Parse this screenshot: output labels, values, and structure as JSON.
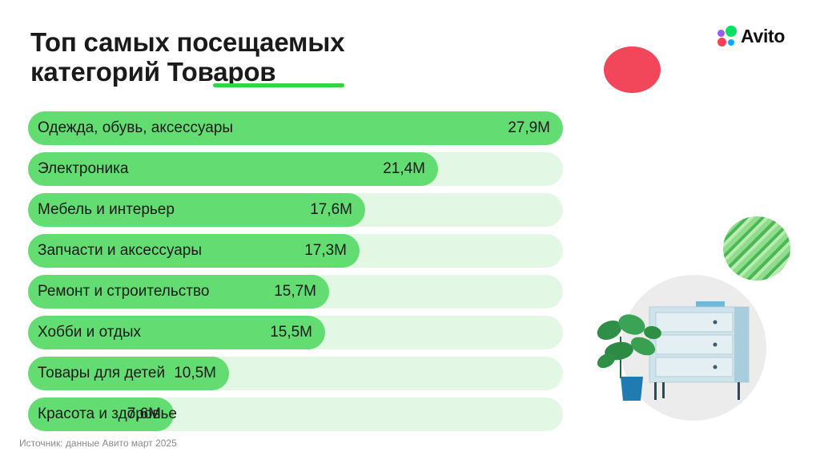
{
  "title": {
    "line1": "Топ самых посещаемых",
    "line2": "категорий Товаров"
  },
  "brand": {
    "name": "Avito"
  },
  "colors": {
    "accent": "#2fd44a",
    "bar_fill": "#63dc72",
    "bar_track": "#e3f8e4",
    "red_dot": "#f2465a",
    "logo_dots": [
      "#965eeb",
      "#0af",
      "#04e061",
      "#ff4053"
    ]
  },
  "chart_data": {
    "type": "bar",
    "orientation": "horizontal",
    "categories": [
      "Одежда, обувь, аксессуары",
      "Электроника",
      "Мебель и интерьер",
      "Запчасти и аксессуары",
      "Ремонт и строительство",
      "Хобби и отдых",
      "Товары для детей",
      "Красота и здоровье"
    ],
    "values": [
      27.9,
      21.4,
      17.6,
      17.3,
      15.7,
      15.5,
      10.5,
      7.6
    ],
    "value_labels": [
      "27,9M",
      "21,4M",
      "17,6M",
      "17,3M",
      "15,7M",
      "15,5M",
      "10,5M",
      "7,6M"
    ],
    "xlim": [
      0,
      27.9
    ],
    "grid": false
  },
  "source": "Источник: данные Авито март 2025"
}
